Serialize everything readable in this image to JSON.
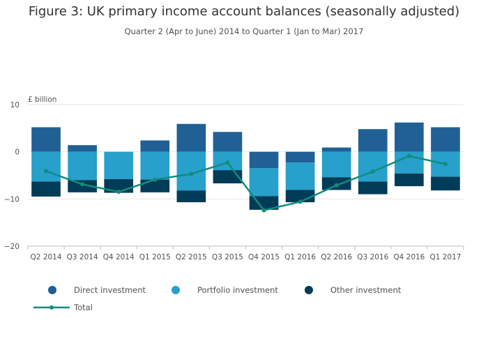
{
  "chart_data": {
    "type": "bar",
    "stacked": true,
    "title": "Figure 3: UK primary income account balances (seasonally adjusted)",
    "subtitle": "Quarter 2 (Apr to June) 2014 to Quarter 1 (Jan to Mar) 2017",
    "ylabel": "£ billion",
    "xlabel": "",
    "ylim": [
      -20,
      10
    ],
    "yticks": [
      "10",
      "0",
      "−10",
      "−20"
    ],
    "ytick_values": [
      10,
      0,
      -10,
      -20
    ],
    "grid": true,
    "legend_position": "bottom",
    "categories": [
      "Q2 2014",
      "Q3 2014",
      "Q4 2014",
      "Q1 2015",
      "Q2 2015",
      "Q3 2015",
      "Q4 2015",
      "Q1 2016",
      "Q2 2016",
      "Q3 2016",
      "Q4 2016",
      "Q1 2017"
    ],
    "series": [
      {
        "name": "Direct investment",
        "color": "#206095",
        "values": [
          5.2,
          1.4,
          0,
          2.4,
          5.9,
          4.2,
          -3.5,
          -2.3,
          0.9,
          4.8,
          6.2,
          5.2
        ]
      },
      {
        "name": "Portfolio investment",
        "color": "#27a0cc",
        "values": [
          -6.3,
          -6.0,
          -5.8,
          -5.9,
          -8.2,
          -3.9,
          -5.9,
          -5.8,
          -5.4,
          -6.3,
          -4.6,
          -5.3
        ]
      },
      {
        "name": "Other investment",
        "color": "#003c57",
        "values": [
          -3.2,
          -2.6,
          -2.9,
          -2.7,
          -2.5,
          -2.8,
          -2.9,
          -2.6,
          -2.7,
          -2.7,
          -2.7,
          -2.9
        ]
      }
    ],
    "line": {
      "name": "Total",
      "color": "#118c7b",
      "values": [
        -4.1,
        -6.9,
        -8.5,
        -5.9,
        -4.7,
        -2.3,
        -12.4,
        -10.6,
        -7.1,
        -4.2,
        -0.9,
        -2.6
      ]
    }
  }
}
